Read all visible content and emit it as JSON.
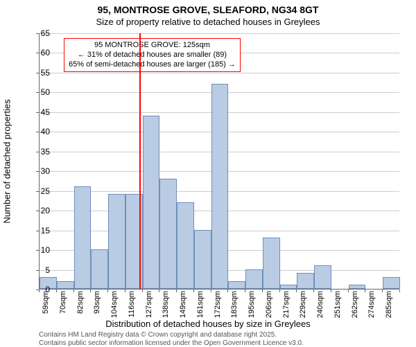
{
  "title_line1": "95, MONTROSE GROVE, SLEAFORD, NG34 8GT",
  "title_line2": "Size of property relative to detached houses in Greylees",
  "y_axis_label": "Number of detached properties",
  "x_axis_label": "Distribution of detached houses by size in Greylees",
  "chart": {
    "type": "histogram",
    "ylim": [
      0,
      65
    ],
    "ytick_step": 5,
    "y_ticks": [
      0,
      5,
      10,
      15,
      20,
      25,
      30,
      35,
      40,
      45,
      50,
      55,
      60,
      65
    ],
    "bar_fill": "#b9cce4",
    "bar_border": "#6e8fb9",
    "grid_color": "#cccccc",
    "background_color": "#ffffff",
    "marker_value": 125,
    "marker_color": "#ff0000",
    "categories": [
      {
        "label": "59sqm",
        "value": 3
      },
      {
        "label": "70sqm",
        "value": 2
      },
      {
        "label": "82sqm",
        "value": 26
      },
      {
        "label": "93sqm",
        "value": 10
      },
      {
        "label": "104sqm",
        "value": 24
      },
      {
        "label": "116sqm",
        "value": 24
      },
      {
        "label": "127sqm",
        "value": 44
      },
      {
        "label": "138sqm",
        "value": 28
      },
      {
        "label": "149sqm",
        "value": 22
      },
      {
        "label": "161sqm",
        "value": 15
      },
      {
        "label": "172sqm",
        "value": 52
      },
      {
        "label": "183sqm",
        "value": 2
      },
      {
        "label": "195sqm",
        "value": 5
      },
      {
        "label": "206sqm",
        "value": 13
      },
      {
        "label": "217sqm",
        "value": 1
      },
      {
        "label": "229sqm",
        "value": 4
      },
      {
        "label": "240sqm",
        "value": 6
      },
      {
        "label": "251sqm",
        "value": 0
      },
      {
        "label": "262sqm",
        "value": 1
      },
      {
        "label": "274sqm",
        "value": 0
      },
      {
        "label": "285sqm",
        "value": 3
      }
    ]
  },
  "annotation": {
    "line1": "95 MONTROSE GROVE: 125sqm",
    "line2": "← 31% of detached houses are smaller (89)",
    "line3": "65% of semi-detached houses are larger (185) →",
    "border_color": "#ff0000"
  },
  "footer_line1": "Contains HM Land Registry data © Crown copyright and database right 2025.",
  "footer_line2": "Contains public sector information licensed under the Open Government Licence v3.0."
}
